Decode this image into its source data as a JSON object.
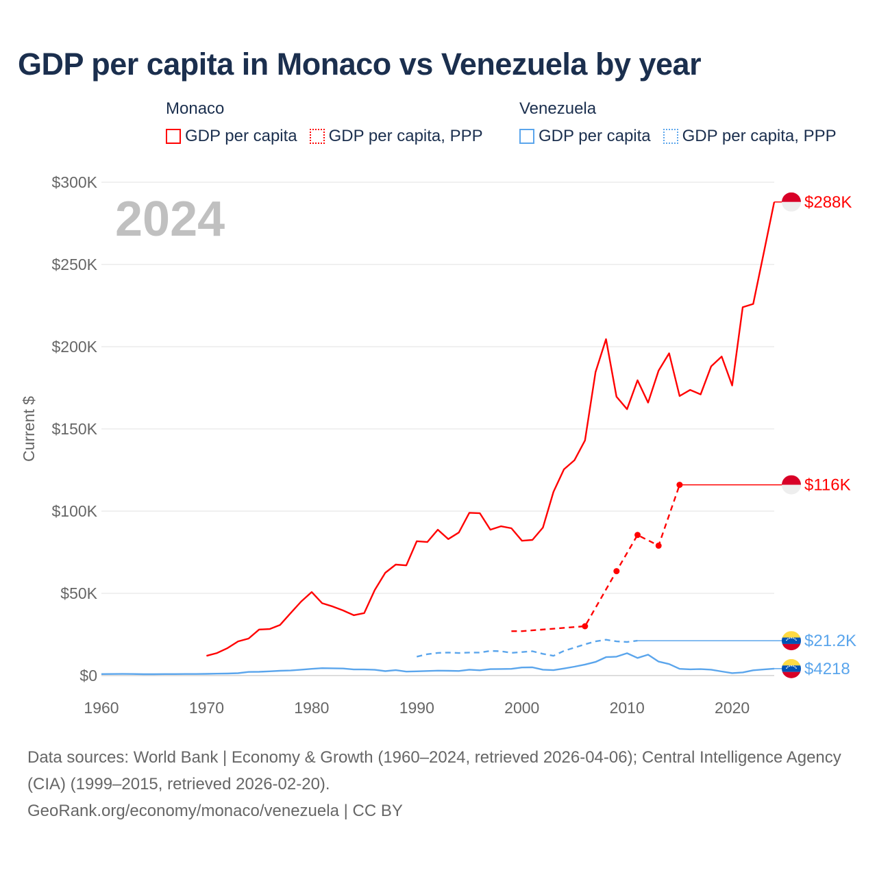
{
  "title": "GDP per capita in Monaco vs Venezuela by year",
  "legend": {
    "groups": [
      {
        "name": "Monaco",
        "color": "#ff0000",
        "items": [
          "GDP per capita",
          "GDP per capita, PPP"
        ]
      },
      {
        "name": "Venezuela",
        "color": "#5aa5ec",
        "items": [
          "GDP per capita",
          "GDP per capita, PPP"
        ]
      }
    ]
  },
  "year_watermark": "2024",
  "footer": {
    "sources": "Data sources: World Bank | Economy & Growth (1960–2024, retrieved 2026-04-06); Central Intelligence Agency (CIA) (1999–2015, retrieved 2026-02-20).",
    "url": "GeoRank.org/economy/monaco/venezuela | CC BY"
  },
  "chart_data": {
    "type": "line",
    "title": "GDP per capita in Monaco vs Venezuela by year",
    "ylabel": "Current $",
    "xlabel": "",
    "xlim": [
      1960,
      2024
    ],
    "ylim": [
      0,
      300000
    ],
    "x_ticks": [
      "1960",
      "1970",
      "1980",
      "1990",
      "2000",
      "2010",
      "2020"
    ],
    "y_ticks": [
      "$0",
      "$50K",
      "$100K",
      "$150K",
      "$200K",
      "$250K",
      "$300K"
    ],
    "grid": true,
    "series": [
      {
        "name": "Monaco GDP per capita",
        "color": "#ff0000",
        "style": "solid",
        "end_label": "$288K",
        "x": [
          1970,
          1971,
          1972,
          1973,
          1974,
          1975,
          1976,
          1977,
          1978,
          1979,
          1980,
          1981,
          1982,
          1983,
          1984,
          1985,
          1986,
          1987,
          1988,
          1989,
          1990,
          1991,
          1992,
          1993,
          1994,
          1995,
          1996,
          1997,
          1998,
          1999,
          2000,
          2001,
          2002,
          2003,
          2004,
          2005,
          2006,
          2007,
          2008,
          2009,
          2010,
          2011,
          2012,
          2013,
          2014,
          2015,
          2016,
          2017,
          2018,
          2019,
          2020,
          2021,
          2022,
          2023,
          2024
        ],
        "y": [
          12000,
          13700,
          16700,
          20800,
          22500,
          28000,
          28300,
          30800,
          38000,
          45000,
          50800,
          44000,
          42000,
          39600,
          36700,
          38000,
          52000,
          62500,
          67500,
          67000,
          81700,
          81200,
          88700,
          83000,
          87000,
          99000,
          98700,
          88700,
          90800,
          89600,
          82000,
          82500,
          90000,
          111700,
          125400,
          131000,
          143000,
          184600,
          204600,
          169600,
          162000,
          179600,
          166000,
          185400,
          196000,
          170000,
          173700,
          171000,
          188000,
          194000,
          176400,
          224000,
          226000,
          257000,
          288000
        ]
      },
      {
        "name": "Monaco GDP per capita, PPP",
        "color": "#ff0000",
        "style": "dashed",
        "end_label": "$116K",
        "x": [
          1999,
          2000,
          2006,
          2009,
          2011,
          2013,
          2015
        ],
        "y": [
          27000,
          27000,
          30000,
          63500,
          85500,
          79000,
          116000
        ],
        "markers": [
          2006,
          2009,
          2011,
          2013,
          2015
        ]
      },
      {
        "name": "Venezuela GDP per capita, PPP",
        "color": "#5aa5ec",
        "style": "dashed",
        "end_label": "$21.2K",
        "x": [
          1990,
          1991,
          1992,
          1993,
          1994,
          1995,
          1996,
          1997,
          1998,
          1999,
          2000,
          2001,
          2002,
          2003,
          2004,
          2005,
          2006,
          2007,
          2008,
          2009,
          2010,
          2011
        ],
        "y": [
          11500,
          13000,
          13800,
          14000,
          13700,
          14000,
          14000,
          15000,
          14800,
          13800,
          14300,
          14800,
          13200,
          12000,
          15000,
          17000,
          19000,
          20800,
          21800,
          20800,
          20400,
          21200
        ]
      },
      {
        "name": "Venezuela GDP per capita",
        "color": "#5aa5ec",
        "style": "solid",
        "end_label": "$4218",
        "x": [
          1960,
          1961,
          1962,
          1963,
          1964,
          1965,
          1966,
          1967,
          1968,
          1969,
          1970,
          1971,
          1972,
          1973,
          1974,
          1975,
          1976,
          1977,
          1978,
          1979,
          1980,
          1981,
          1982,
          1983,
          1984,
          1985,
          1986,
          1987,
          1988,
          1989,
          1990,
          1991,
          1992,
          1993,
          1994,
          1995,
          1996,
          1997,
          1998,
          1999,
          2000,
          2001,
          2002,
          2003,
          2004,
          2005,
          2006,
          2007,
          2008,
          2009,
          2010,
          2011,
          2012,
          2013,
          2014,
          2015,
          2016,
          2017,
          2018,
          2019,
          2020,
          2021,
          2022,
          2023,
          2024
        ],
        "y": [
          900,
          950,
          1000,
          950,
          850,
          850,
          900,
          900,
          950,
          950,
          1050,
          1150,
          1250,
          1450,
          2200,
          2300,
          2600,
          2900,
          3100,
          3600,
          4100,
          4500,
          4400,
          4300,
          3700,
          3700,
          3500,
          2700,
          3300,
          2400,
          2600,
          2800,
          3000,
          2900,
          2800,
          3600,
          3200,
          3900,
          4000,
          4100,
          4900,
          5000,
          3600,
          3300,
          4300,
          5400,
          6700,
          8300,
          11200,
          11500,
          13600,
          10700,
          12700,
          8500,
          7000,
          4100,
          3800,
          3900,
          3600,
          2500,
          1500,
          1900,
          3200,
          3700,
          4218
        ]
      }
    ]
  }
}
